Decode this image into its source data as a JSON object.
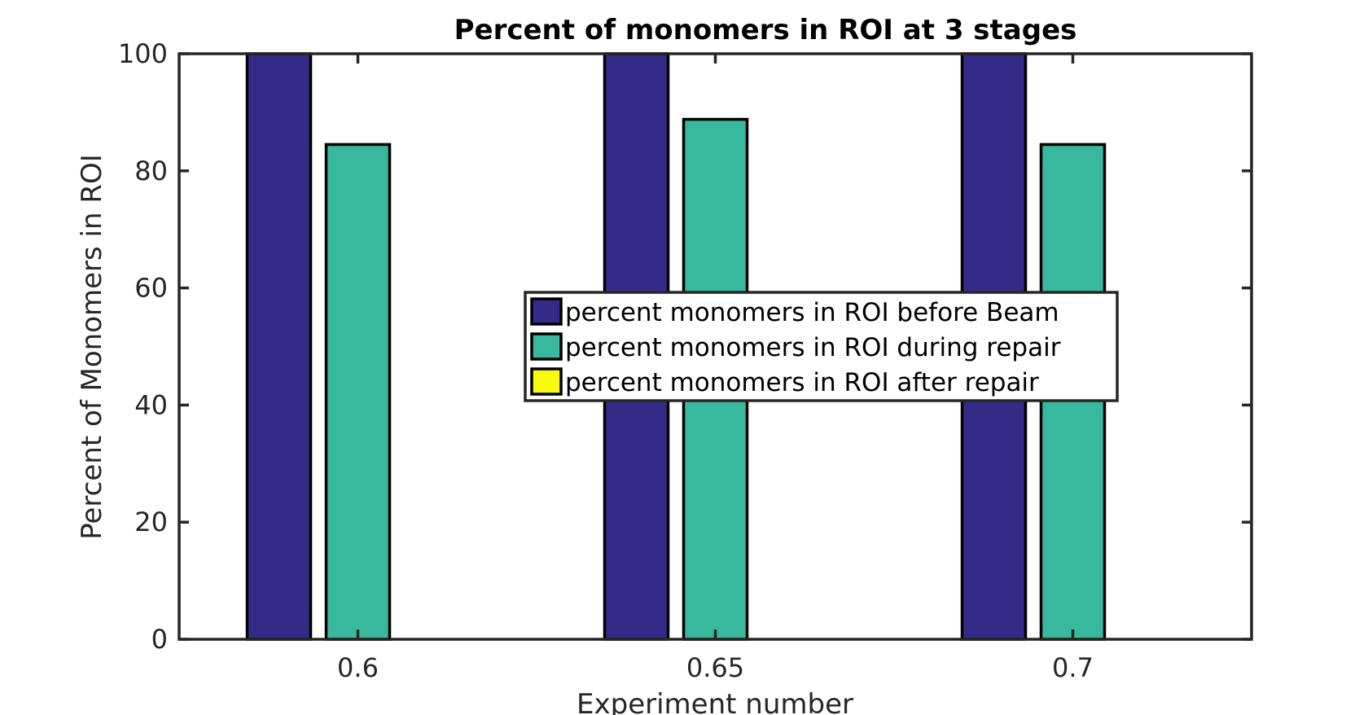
{
  "chart_data": {
    "type": "bar",
    "title": "Percent of monomers in ROI at 3 stages",
    "xlabel": "Experiment number",
    "ylabel": "Percent of Monomers in ROI",
    "categories": [
      "0.6",
      "0.65",
      "0.7"
    ],
    "ylim": [
      0,
      100
    ],
    "yticks": [
      0,
      20,
      40,
      60,
      80,
      100
    ],
    "grid": false,
    "legend_position": "center",
    "series": [
      {
        "name": "percent monomers in ROI before Beam",
        "color": "#352a87",
        "values": [
          100,
          100,
          100
        ]
      },
      {
        "name": "percent monomers in ROI during repair",
        "color": "#38b99e",
        "values": [
          84.5,
          88.8,
          84.5
        ]
      },
      {
        "name": "percent monomers in ROI after repair",
        "color": "#f9fb0e",
        "values": [
          0,
          0,
          0
        ]
      }
    ]
  }
}
